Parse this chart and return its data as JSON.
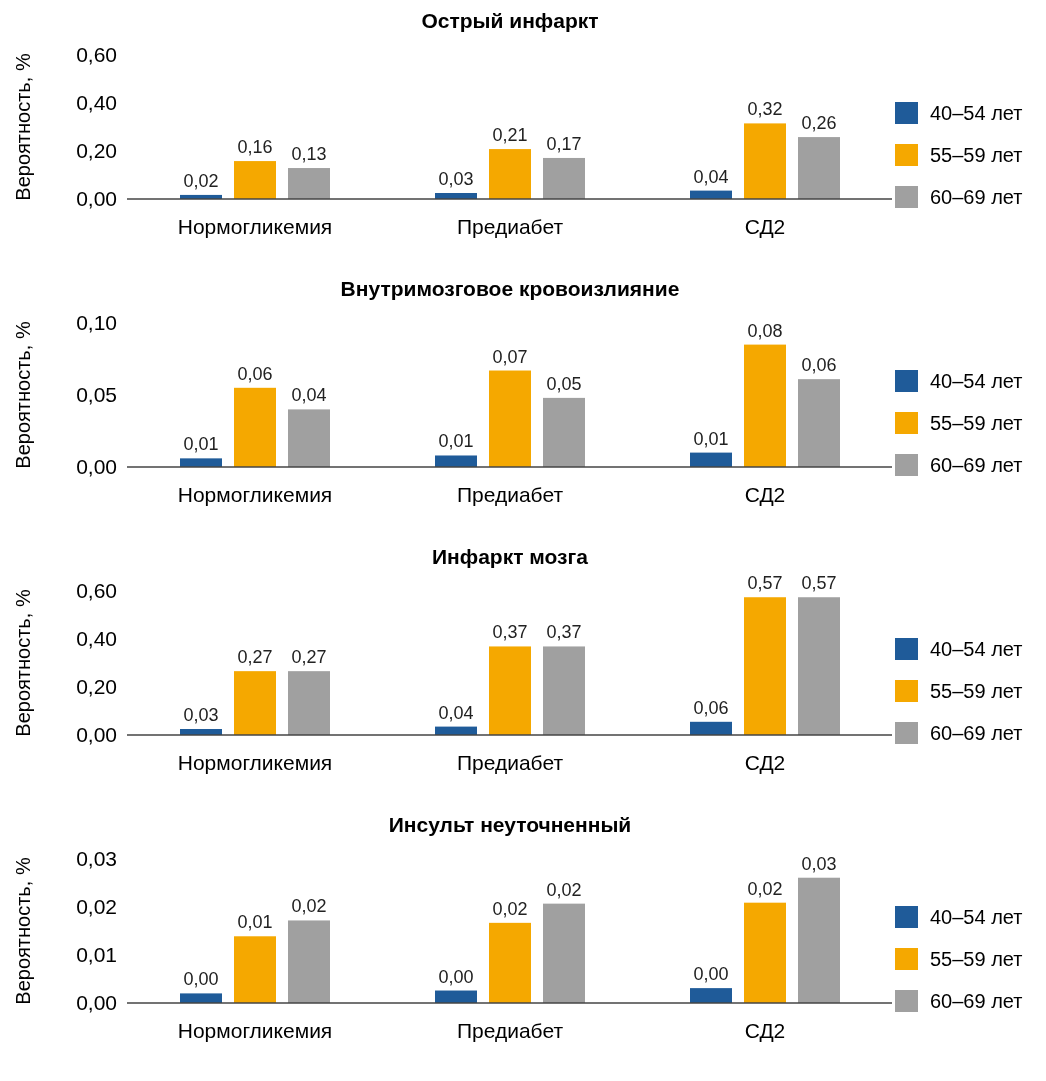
{
  "chart_data": [
    {
      "type": "bar",
      "title": "Острый инфаркт",
      "ylabel": "Вероятность, %",
      "categories": [
        "Нормогликемия",
        "Предиабет",
        "СД2"
      ],
      "ylim": [
        0,
        0.6
      ],
      "yticks": [
        {
          "value": 0,
          "label": "0,00"
        },
        {
          "value": 0.2,
          "label": "0,20"
        },
        {
          "value": 0.4,
          "label": "0,40"
        },
        {
          "value": 0.6,
          "label": "0,60"
        }
      ],
      "legend": "right",
      "series": [
        {
          "name": "40–54 лет",
          "color": "#1f5b99",
          "values": [
            0.017,
            0.025,
            0.035
          ],
          "value_labels": [
            "0,02",
            "0,03",
            "0,04"
          ]
        },
        {
          "name": "55–59 лет",
          "color": "#f5a800",
          "values": [
            0.158,
            0.208,
            0.315
          ],
          "value_labels": [
            "0,16",
            "0,21",
            "0,32"
          ]
        },
        {
          "name": "60–69 лет",
          "color": "#a0a0a0",
          "values": [
            0.129,
            0.171,
            0.258
          ],
          "value_labels": [
            "0,13",
            "0,17",
            "0,26"
          ]
        }
      ]
    },
    {
      "type": "bar",
      "title": "Внутримозговое кровоизлияние",
      "ylabel": "Вероятность, %",
      "categories": [
        "Нормогликемия",
        "Предиабет",
        "СД2"
      ],
      "ylim": [
        0,
        0.1
      ],
      "yticks": [
        {
          "value": 0,
          "label": "0,00"
        },
        {
          "value": 0.05,
          "label": "0,05"
        },
        {
          "value": 0.1,
          "label": "0,10"
        }
      ],
      "legend": "right",
      "series": [
        {
          "name": "40–54 лет",
          "color": "#1f5b99",
          "values": [
            0.006,
            0.008,
            0.01
          ],
          "value_labels": [
            "0,01",
            "0,01",
            "0,01"
          ]
        },
        {
          "name": "55–59 лет",
          "color": "#f5a800",
          "values": [
            0.055,
            0.067,
            0.085
          ],
          "value_labels": [
            "0,06",
            "0,07",
            "0,08"
          ]
        },
        {
          "name": "60–69 лет",
          "color": "#a0a0a0",
          "values": [
            0.04,
            0.048,
            0.061
          ],
          "value_labels": [
            "0,04",
            "0,05",
            "0,06"
          ]
        }
      ]
    },
    {
      "type": "bar",
      "title": "Инфаркт мозга",
      "ylabel": "Вероятность, %",
      "categories": [
        "Нормогликемия",
        "Предиабет",
        "СД2"
      ],
      "ylim": [
        0,
        0.6
      ],
      "yticks": [
        {
          "value": 0,
          "label": "0,00"
        },
        {
          "value": 0.2,
          "label": "0,20"
        },
        {
          "value": 0.4,
          "label": "0,40"
        },
        {
          "value": 0.6,
          "label": "0,60"
        }
      ],
      "legend": "right",
      "series": [
        {
          "name": "40–54 лет",
          "color": "#1f5b99",
          "values": [
            0.025,
            0.035,
            0.055
          ],
          "value_labels": [
            "0,03",
            "0,04",
            "0,06"
          ]
        },
        {
          "name": "55–59 лет",
          "color": "#f5a800",
          "values": [
            0.266,
            0.369,
            0.574
          ],
          "value_labels": [
            "0,27",
            "0,37",
            "0,57"
          ]
        },
        {
          "name": "60–69 лет",
          "color": "#a0a0a0",
          "values": [
            0.266,
            0.369,
            0.574
          ],
          "value_labels": [
            "0,27",
            "0,37",
            "0,57"
          ]
        }
      ]
    },
    {
      "type": "bar",
      "title": "Инсульт неуточненный",
      "ylabel": "Вероятность, %",
      "categories": [
        "Нормогликемия",
        "Предиабет",
        "СД2"
      ],
      "ylim": [
        0,
        0.03
      ],
      "yticks": [
        {
          "value": 0,
          "label": "0,00"
        },
        {
          "value": 0.01,
          "label": "0,01"
        },
        {
          "value": 0.02,
          "label": "0,02"
        },
        {
          "value": 0.03,
          "label": "0,03"
        }
      ],
      "legend": "right",
      "series": [
        {
          "name": "40–54 лет",
          "color": "#1f5b99",
          "values": [
            0.002,
            0.0026,
            0.0031
          ],
          "value_labels": [
            "0,00",
            "0,00",
            "0,00"
          ]
        },
        {
          "name": "55–59 лет",
          "color": "#f5a800",
          "values": [
            0.0139,
            0.0167,
            0.0209
          ],
          "value_labels": [
            "0,01",
            "0,02",
            "0,02"
          ]
        },
        {
          "name": "60–69 лет",
          "color": "#a0a0a0",
          "values": [
            0.0172,
            0.0207,
            0.0261
          ],
          "value_labels": [
            "0,02",
            "0,02",
            "0,03"
          ]
        }
      ]
    }
  ]
}
